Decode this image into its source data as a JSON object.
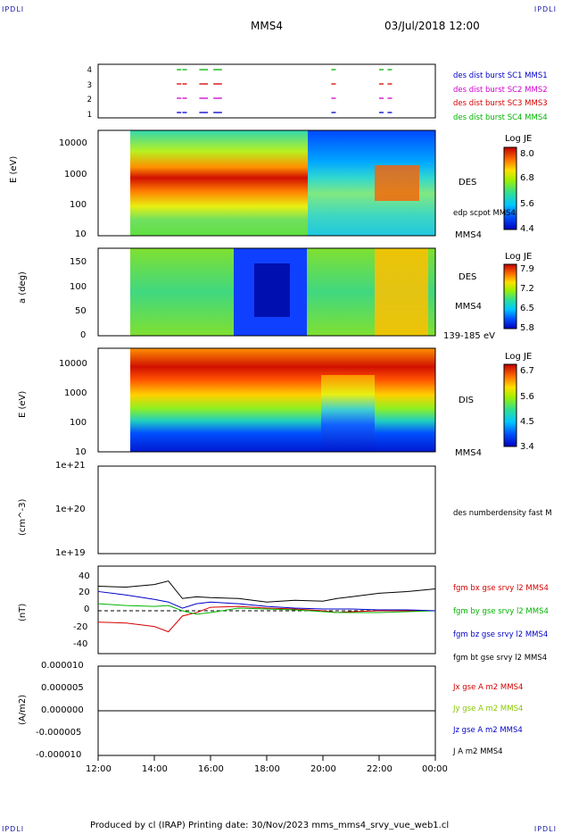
{
  "corner_tl": "IPDLI",
  "corner_tr": "IPDLI",
  "corner_bl": "IPDLI",
  "corner_br": "IPDLI",
  "header": {
    "spacecraft": "MMS4",
    "datetime": "03/Jul/2018 12:00"
  },
  "footer": "Produced by cl (IRAP)   Printing date: 30/Nov/2023   mms_mms4_srvy_vue_web1.cl",
  "x_axis": {
    "ticks": [
      "12:00",
      "14:00",
      "16:00",
      "18:00",
      "20:00",
      "22:00",
      "00:00"
    ]
  },
  "colors": {
    "red": "#d40000",
    "green": "#00b400",
    "blue": "#0000c8",
    "magenta": "#d000d0",
    "black": "#000000"
  },
  "panels": {
    "burst": {
      "yticks": [
        "4",
        "3",
        "2",
        "1"
      ],
      "legend": [
        {
          "text": "des dist burst SC1 MMS1",
          "color": "#0000c8"
        },
        {
          "text": "des dist burst SC2 MMS2",
          "color": "#d000d0"
        },
        {
          "text": "des dist burst SC3 MMS3",
          "color": "#d40000"
        },
        {
          "text": "des dist burst SC4 MMS4",
          "color": "#00b400"
        }
      ]
    },
    "des_energy": {
      "ylabel": "E (eV)",
      "yticks": [
        "10000",
        "1000",
        "100",
        "10"
      ],
      "name": "DES",
      "overlay": "edp scpot MMS4",
      "sc": "MMS4",
      "cbar_title": "Log JE",
      "cbar_ticks": [
        "8.0",
        "6.8",
        "5.6",
        "4.4"
      ]
    },
    "des_pitch": {
      "ylabel": "a (deg)",
      "yticks": [
        "150",
        "100",
        "50",
        "0"
      ],
      "name": "DES",
      "sc": "MMS4",
      "range": "139-185 eV",
      "cbar_title": "Log JE",
      "cbar_ticks": [
        "7.9",
        "7.2",
        "6.5",
        "5.8"
      ]
    },
    "dis_energy": {
      "ylabel": "E (eV)",
      "yticks": [
        "10000",
        "1000",
        "100",
        "10"
      ],
      "name": "DIS",
      "sc": "MMS4",
      "cbar_title": "Log JE",
      "cbar_ticks": [
        "6.7",
        "5.6",
        "4.5",
        "3.4"
      ]
    },
    "density": {
      "ylabel": "(cm^-3)",
      "yticks": [
        "1e+21",
        "1e+20",
        "1e+19"
      ],
      "legend": "des numberdensity fast M"
    },
    "bfield": {
      "ylabel": "(nT)",
      "yticks": [
        "40",
        "20",
        "0",
        "-20",
        "-40"
      ],
      "legend": [
        {
          "text": "fgm bx gse srvy l2 MMS4",
          "color": "#d40000"
        },
        {
          "text": "fgm by gse srvy l2 MMS4",
          "color": "#00b400"
        },
        {
          "text": "fgm bz gse srvy l2 MMS4",
          "color": "#0000c8"
        },
        {
          "text": "fgm bt gse srvy l2 MMS4",
          "color": "#000000"
        }
      ]
    },
    "current": {
      "ylabel": "(A/m2)",
      "yticks": [
        "0.000010",
        "0.000005",
        "0.000000",
        "-0.000005",
        "-0.000010"
      ],
      "legend": [
        {
          "text": "Jx gse A m2 MMS4",
          "color": "#d40000"
        },
        {
          "text": "Jy gse A m2 MMS4",
          "color": "#88c800"
        },
        {
          "text": "Jz gse A m2 MMS4",
          "color": "#0000c8"
        },
        {
          "text": "J A m2 MMS4",
          "color": "#000000"
        }
      ]
    }
  },
  "chart_data": {
    "type": "line",
    "x_hours": [
      12,
      13,
      14,
      14.5,
      15,
      15.5,
      16,
      17,
      18,
      19,
      20,
      20.5,
      21,
      22,
      23,
      24
    ],
    "series": [
      {
        "name": "fgm bx gse srvy l2 MMS4",
        "values": [
          -13,
          -14,
          -18,
          -24,
          -6,
          -2,
          4,
          5,
          3,
          2,
          0,
          -2,
          -1,
          0,
          0,
          0
        ]
      },
      {
        "name": "fgm by gse srvy l2 MMS4",
        "values": [
          8,
          6,
          5,
          6,
          0,
          -4,
          -2,
          3,
          2,
          1,
          -1,
          -2,
          -2,
          -2,
          -1,
          0
        ]
      },
      {
        "name": "fgm bz gse srvy l2 MMS4",
        "values": [
          22,
          18,
          13,
          10,
          3,
          8,
          10,
          8,
          5,
          3,
          2,
          2,
          2,
          1,
          1,
          0
        ]
      },
      {
        "name": "fgm bt gse srvy l2 MMS4",
        "values": [
          28,
          27,
          30,
          34,
          14,
          16,
          15,
          14,
          10,
          12,
          11,
          14,
          16,
          20,
          22,
          25
        ]
      }
    ],
    "ylim": [
      -50,
      50
    ],
    "xlim": [
      12,
      24
    ]
  }
}
